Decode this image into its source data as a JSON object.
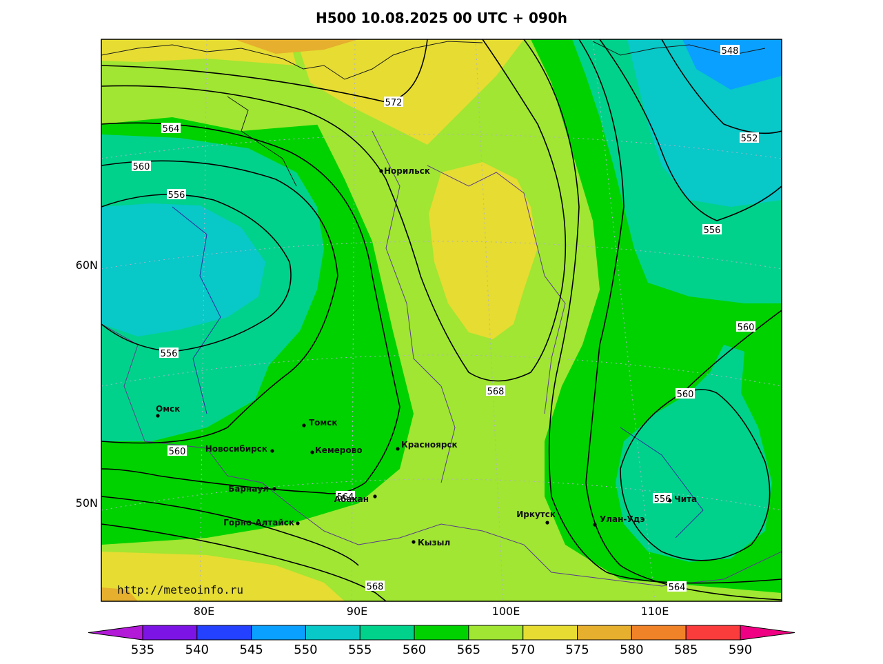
{
  "title": "H500  10.08.2025 00 UTC + 090h",
  "chart_data": {
    "type": "heatmap",
    "title": "H500  10.08.2025 00 UTC + 090h",
    "x_ticks": [
      "80E",
      "90E",
      "100E",
      "110E"
    ],
    "y_ticks": [
      "60N",
      "50N"
    ],
    "colorbar": {
      "levels": [
        535,
        540,
        545,
        550,
        555,
        560,
        565,
        570,
        575,
        580,
        585,
        590
      ],
      "level_labels": [
        "535",
        "540",
        "545",
        "550",
        "555",
        "560",
        "565",
        "570",
        "575",
        "580",
        "585",
        "590"
      ],
      "colors": [
        "#b21ad8",
        "#7d14e6",
        "#2341ff",
        "#0aa0ff",
        "#08c8c8",
        "#00d28c",
        "#00d200",
        "#a0e632",
        "#e6dc32",
        "#e6af2d",
        "#f08228",
        "#fa3c3c",
        "#f00082"
      ]
    },
    "contours": [
      {
        "value": 548,
        "label": "548"
      },
      {
        "value": 552,
        "label": "552"
      },
      {
        "value": 556,
        "label": "556"
      },
      {
        "value": 560,
        "label": "560"
      },
      {
        "value": 564,
        "label": "564"
      },
      {
        "value": 568,
        "label": "568"
      },
      {
        "value": 572,
        "label": "572"
      }
    ],
    "contour_labels": [
      {
        "text": "572"
      },
      {
        "text": "564"
      },
      {
        "text": "560"
      },
      {
        "text": "556"
      },
      {
        "text": "556"
      },
      {
        "text": "560"
      },
      {
        "text": "564"
      },
      {
        "text": "568"
      },
      {
        "text": "568"
      },
      {
        "text": "564"
      },
      {
        "text": "548"
      },
      {
        "text": "552"
      },
      {
        "text": "556"
      },
      {
        "text": "560"
      },
      {
        "text": "560"
      },
      {
        "text": "556"
      }
    ],
    "cities": [
      {
        "name": "Норильск"
      },
      {
        "name": "Омск"
      },
      {
        "name": "Томск"
      },
      {
        "name": "Новосибирск"
      },
      {
        "name": "Кемерово"
      },
      {
        "name": "Красноярск"
      },
      {
        "name": "Барнаул"
      },
      {
        "name": "Абакан"
      },
      {
        "name": "Горно-Алтайск"
      },
      {
        "name": "Кызыл"
      },
      {
        "name": "Иркутск"
      },
      {
        "name": "Улан-Удэ"
      },
      {
        "name": "Чита"
      }
    ]
  },
  "source": "http://meteoinfo.ru"
}
